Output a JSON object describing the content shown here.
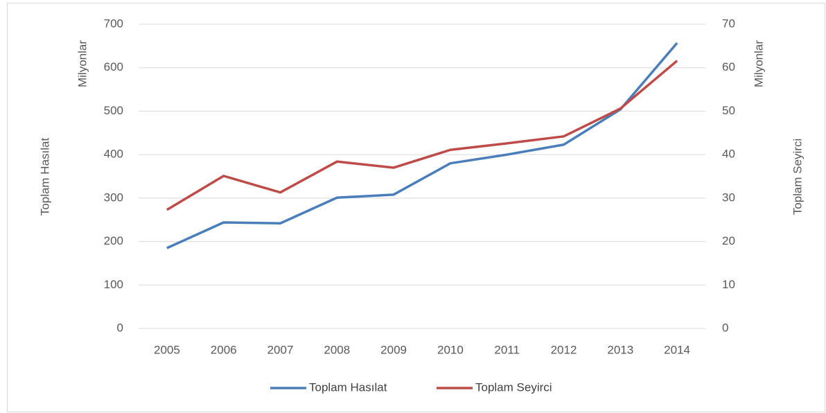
{
  "chart_data": {
    "type": "line",
    "categories": [
      "2005",
      "2006",
      "2007",
      "2008",
      "2009",
      "2010",
      "2011",
      "2012",
      "2013",
      "2014"
    ],
    "series": [
      {
        "name": "Toplam Hasılat",
        "color": "#4a7ebb",
        "axis": "y",
        "values": [
          185,
          244,
          242,
          301,
          308,
          380,
          400,
          423,
          504,
          657
        ]
      },
      {
        "name": "Toplam Seyirci",
        "color": "#be4b48",
        "axis": "y2",
        "values": [
          27.3,
          35.1,
          31.3,
          38.4,
          37.0,
          41.1,
          42.6,
          44.2,
          50.6,
          61.6
        ]
      }
    ],
    "y_label": "Toplam Hasılat",
    "y_units": "Milyonlar",
    "y2_label": "Toplam Seyirci",
    "y2_units": "Milyonlar",
    "ylim": [
      0,
      700
    ],
    "yticks": [
      0,
      100,
      200,
      300,
      400,
      500,
      600,
      700
    ],
    "y2lim": [
      0,
      70
    ],
    "y2ticks": [
      0,
      10,
      20,
      30,
      40,
      50,
      60,
      70
    ],
    "grid": true,
    "legend": "bottom"
  }
}
